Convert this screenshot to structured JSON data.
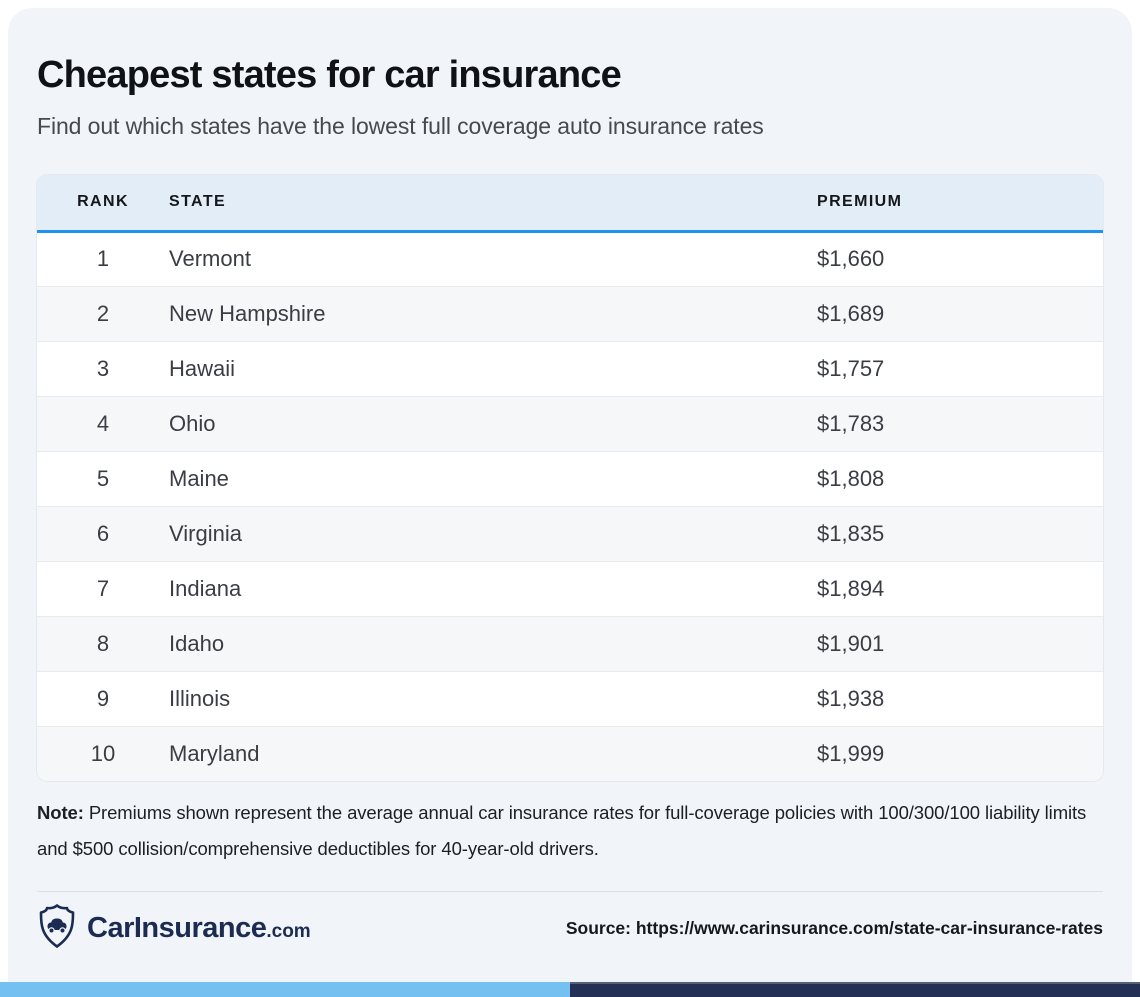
{
  "colors": {
    "card_bg": "#f1f5f9",
    "table_header_bg": "#e3edf8",
    "accent_blue": "#1e93f1",
    "brand_navy": "#1c2b52",
    "bar_light_blue": "#74c0f0",
    "bar_dark_navy": "#243056"
  },
  "header": {
    "title": "Cheapest states for car insurance",
    "subtitle": "Find out which states have the lowest full coverage auto insurance rates"
  },
  "table": {
    "columns": [
      "RANK",
      "STATE",
      "PREMIUM"
    ],
    "rows": [
      {
        "rank": "1",
        "state": "Vermont",
        "premium": "$1,660"
      },
      {
        "rank": "2",
        "state": "New Hampshire",
        "premium": "$1,689"
      },
      {
        "rank": "3",
        "state": "Hawaii",
        "premium": "$1,757"
      },
      {
        "rank": "4",
        "state": "Ohio",
        "premium": "$1,783"
      },
      {
        "rank": "5",
        "state": "Maine",
        "premium": "$1,808"
      },
      {
        "rank": "6",
        "state": "Virginia",
        "premium": "$1,835"
      },
      {
        "rank": "7",
        "state": "Indiana",
        "premium": "$1,894"
      },
      {
        "rank": "8",
        "state": "Idaho",
        "premium": "$1,901"
      },
      {
        "rank": "9",
        "state": "Illinois",
        "premium": "$1,938"
      },
      {
        "rank": "10",
        "state": "Maryland",
        "premium": "$1,999"
      }
    ]
  },
  "note": {
    "label": "Note:",
    "text": " Premiums shown represent the average annual car insurance rates for full-coverage policies with 100/300/100 liability limits and $500 collision/comprehensive deductibles for 40-year-old drivers."
  },
  "footer": {
    "brand": "CarInsurance",
    "brand_suffix": ".com",
    "source": "Source: https://www.carinsurance.com/state-car-insurance-rates"
  },
  "chart_data": {
    "type": "table",
    "title": "Cheapest states for car insurance",
    "categories": [
      "Vermont",
      "New Hampshire",
      "Hawaii",
      "Ohio",
      "Maine",
      "Virginia",
      "Indiana",
      "Idaho",
      "Illinois",
      "Maryland"
    ],
    "values": [
      1660,
      1689,
      1757,
      1783,
      1808,
      1835,
      1894,
      1901,
      1938,
      1999
    ]
  }
}
